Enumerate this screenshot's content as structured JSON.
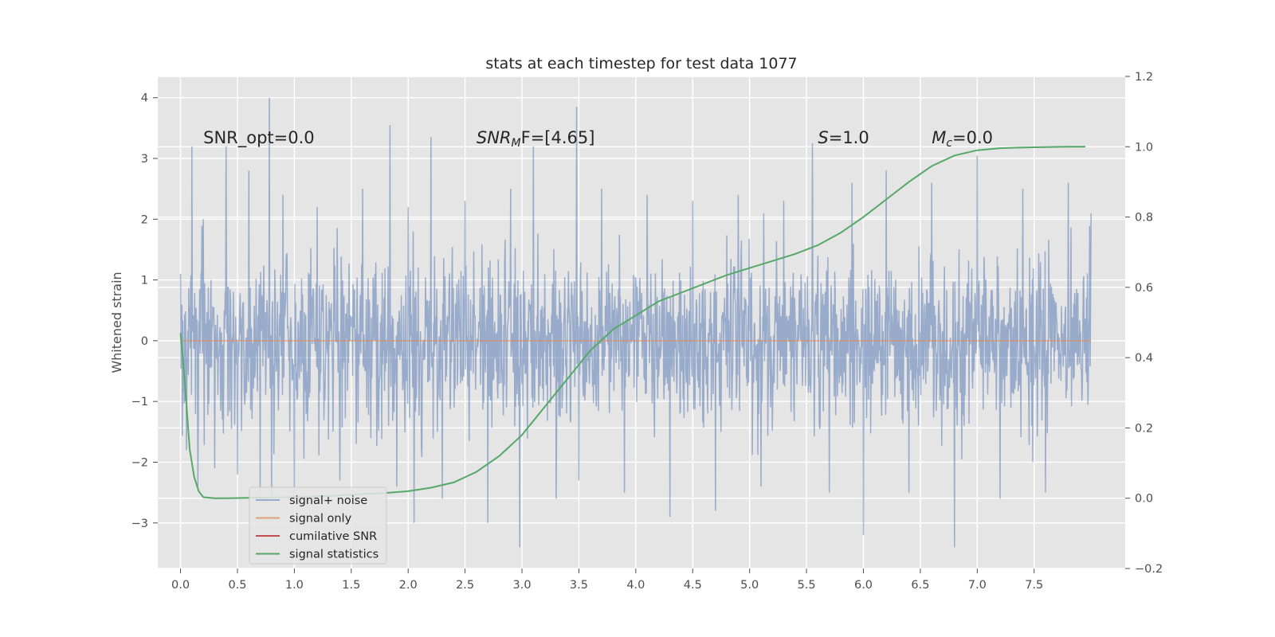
{
  "chart_data": {
    "type": "line",
    "title": "stats at each timestep for test data 1077",
    "xlabel": "",
    "ylabel": "Whitened strain",
    "y2label": "",
    "xlim": [
      -0.2,
      8.3
    ],
    "ylim": [
      -3.75,
      4.35
    ],
    "y2lim": [
      -0.2,
      1.2
    ],
    "xticks": [
      "0.0",
      "0.5",
      "1.0",
      "1.5",
      "2.0",
      "2.5",
      "3.0",
      "3.5",
      "4.0",
      "4.5",
      "5.0",
      "5.5",
      "6.0",
      "6.5",
      "7.0",
      "7.5"
    ],
    "yticks": [
      "−3",
      "−2",
      "−1",
      "0",
      "1",
      "2",
      "3",
      "4"
    ],
    "y2ticks": [
      "−0.2",
      "0.0",
      "0.2",
      "0.4",
      "0.6",
      "0.8",
      "1.0",
      "1.2"
    ],
    "grid": true,
    "legend_position": "lower-left",
    "series": [
      {
        "name": "signal+ noise",
        "axis": "left",
        "color": "#4c72b0",
        "note_visible": "dense noise trace, roughly within ±1.5 with spikes up to about 4.0 and down to about -3.4",
        "x": [
          0.0,
          0.05,
          0.1,
          0.15,
          0.2,
          0.3,
          0.4,
          0.5,
          0.6,
          0.7,
          0.78,
          0.8,
          0.9,
          1.0,
          1.2,
          1.4,
          1.6,
          1.84,
          1.9,
          2.0,
          2.05,
          2.2,
          2.3,
          2.5,
          2.7,
          2.9,
          2.98,
          3.1,
          3.3,
          3.48,
          3.5,
          3.7,
          3.9,
          4.1,
          4.3,
          4.5,
          4.7,
          4.9,
          5.1,
          5.3,
          5.55,
          5.7,
          5.9,
          6.0,
          6.2,
          6.4,
          6.6,
          6.8,
          7.0,
          7.2,
          7.4,
          7.6,
          7.8,
          8.0
        ],
        "values": [
          1.1,
          -1.8,
          3.2,
          -2.4,
          2.0,
          -2.1,
          3.2,
          -2.2,
          2.8,
          -2.5,
          4.0,
          -2.6,
          2.4,
          -2.7,
          2.2,
          -2.3,
          2.5,
          3.55,
          -2.4,
          2.2,
          -3.0,
          3.35,
          -2.6,
          2.3,
          -3.0,
          2.5,
          -3.4,
          3.2,
          -2.6,
          3.85,
          -2.3,
          2.5,
          -2.5,
          2.4,
          -2.9,
          2.3,
          -2.8,
          2.4,
          -2.4,
          2.3,
          3.25,
          -2.5,
          2.6,
          -3.2,
          2.8,
          -2.5,
          2.6,
          -3.4,
          3.05,
          -2.6,
          2.5,
          -2.5,
          2.6,
          2.1
        ]
      },
      {
        "name": "signal only",
        "axis": "left",
        "color": "#dd8452",
        "x": [
          0.0,
          8.0
        ],
        "values": [
          0.0,
          0.0
        ]
      },
      {
        "name": "cumilative SNR",
        "axis": "left",
        "color": "#c44e52",
        "x": [],
        "values": []
      },
      {
        "name": "signal statistics",
        "axis": "right",
        "color": "#55a868",
        "x": [
          0.0,
          0.04,
          0.08,
          0.12,
          0.16,
          0.2,
          0.3,
          0.4,
          0.6,
          0.8,
          1.0,
          1.2,
          1.4,
          1.6,
          1.8,
          2.0,
          2.2,
          2.4,
          2.6,
          2.8,
          3.0,
          3.2,
          3.4,
          3.6,
          3.8,
          4.0,
          4.2,
          4.4,
          4.6,
          4.8,
          5.0,
          5.2,
          5.4,
          5.6,
          5.8,
          6.0,
          6.2,
          6.4,
          6.6,
          6.8,
          7.0,
          7.2,
          7.4,
          7.6,
          7.8,
          7.95
        ],
        "values": [
          0.47,
          0.32,
          0.14,
          0.06,
          0.02,
          0.003,
          0.0,
          0.0,
          0.001,
          0.002,
          0.003,
          0.005,
          0.008,
          0.012,
          0.015,
          0.02,
          0.03,
          0.045,
          0.075,
          0.12,
          0.18,
          0.26,
          0.34,
          0.42,
          0.48,
          0.52,
          0.56,
          0.585,
          0.61,
          0.635,
          0.655,
          0.675,
          0.695,
          0.72,
          0.755,
          0.8,
          0.85,
          0.9,
          0.945,
          0.975,
          0.99,
          0.996,
          0.998,
          0.999,
          1.0,
          1.0
        ]
      }
    ],
    "annotations": [
      {
        "text_main": "SNR_opt=0.0",
        "x": 0.2,
        "y": 3.25
      },
      {
        "text_main": "SNR",
        "text_sub": "M",
        "text_tail": "F=[4.65]",
        "x": 2.6,
        "y": 3.25
      },
      {
        "text_main": "S",
        "text_tail": "=1.0",
        "x": 5.6,
        "y": 3.25
      },
      {
        "text_main": "M",
        "text_sub": "c",
        "text_tail": "=0.0",
        "x": 6.6,
        "y": 3.25
      }
    ],
    "colors": {
      "plot_background": "#e5e5e5",
      "grid": "#ffffff",
      "text": "#262626",
      "tick_text": "#4d4d4d"
    }
  }
}
